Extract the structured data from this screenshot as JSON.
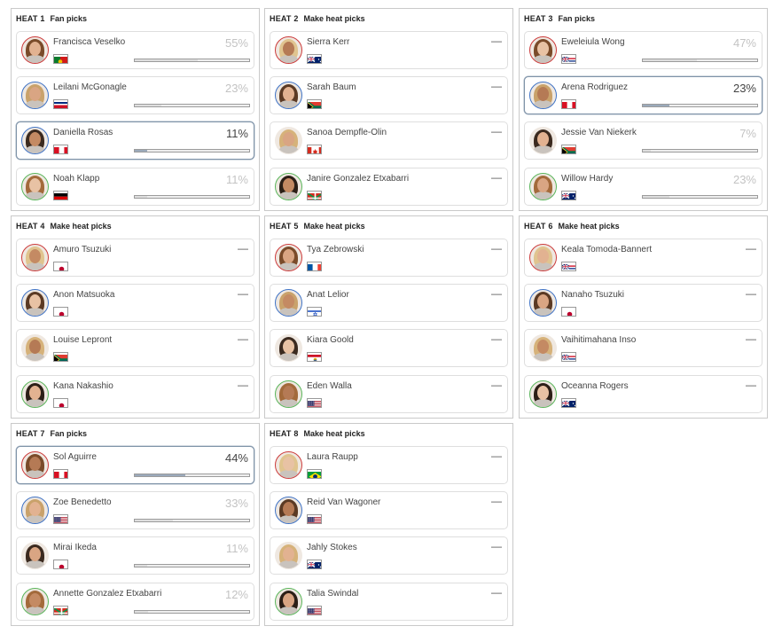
{
  "heats": [
    {
      "number": "HEAT 1",
      "subtitle": "Fan picks",
      "surfers": [
        {
          "name": "Francisca Veselko",
          "flag": "portugal-flag",
          "ring": "red",
          "percent": "55%",
          "value": 55,
          "selected": false
        },
        {
          "name": "Leilani McGonagle",
          "flag": "costa-rica-flag",
          "ring": "blue",
          "percent": "23%",
          "value": 23,
          "selected": false
        },
        {
          "name": "Daniella Rosas",
          "flag": "peru-flag",
          "ring": "blue",
          "percent": "11%",
          "value": 11,
          "selected": true
        },
        {
          "name": "Noah Klapp",
          "flag": "germany-flag",
          "ring": "green",
          "percent": "11%",
          "value": 11,
          "selected": false
        }
      ]
    },
    {
      "number": "HEAT 2",
      "subtitle": "Make heat picks",
      "surfers": [
        {
          "name": "Sierra Kerr",
          "flag": "australia-flag",
          "ring": "red",
          "percent": "—",
          "value": null,
          "selected": false
        },
        {
          "name": "Sarah Baum",
          "flag": "south-africa-flag",
          "ring": "blue",
          "percent": "—",
          "value": null,
          "selected": false
        },
        {
          "name": "Sanoa Dempfle-Olin",
          "flag": "canada-flag",
          "ring": "none",
          "percent": "—",
          "value": null,
          "selected": false
        },
        {
          "name": "Janire Gonzalez Etxabarri",
          "flag": "basque-flag",
          "ring": "green",
          "percent": "—",
          "value": null,
          "selected": false
        }
      ]
    },
    {
      "number": "HEAT 3",
      "subtitle": "Fan picks",
      "surfers": [
        {
          "name": "Eweleiula Wong",
          "flag": "hawaii-flag",
          "ring": "red",
          "percent": "47%",
          "value": 47,
          "selected": false
        },
        {
          "name": "Arena Rodriguez",
          "flag": "peru-flag",
          "ring": "blue",
          "percent": "23%",
          "value": 23,
          "selected": true
        },
        {
          "name": "Jessie Van Niekerk",
          "flag": "south-africa-flag",
          "ring": "none",
          "percent": "7%",
          "value": 7,
          "selected": false
        },
        {
          "name": "Willow Hardy",
          "flag": "australia-flag",
          "ring": "green",
          "percent": "23%",
          "value": 23,
          "selected": false
        }
      ]
    },
    {
      "number": "HEAT 4",
      "subtitle": "Make heat picks",
      "surfers": [
        {
          "name": "Amuro Tsuzuki",
          "flag": "japan-flag",
          "ring": "red",
          "percent": "—",
          "value": null,
          "selected": false
        },
        {
          "name": "Anon Matsuoka",
          "flag": "japan-flag",
          "ring": "blue",
          "percent": "—",
          "value": null,
          "selected": false
        },
        {
          "name": "Louise Lepront",
          "flag": "south-africa-flag",
          "ring": "none",
          "percent": "—",
          "value": null,
          "selected": false
        },
        {
          "name": "Kana Nakashio",
          "flag": "japan-flag",
          "ring": "green",
          "percent": "—",
          "value": null,
          "selected": false
        }
      ]
    },
    {
      "number": "HEAT 5",
      "subtitle": "Make heat picks",
      "surfers": [
        {
          "name": "Tya Zebrowski",
          "flag": "france-flag",
          "ring": "red",
          "percent": "—",
          "value": null,
          "selected": false
        },
        {
          "name": "Anat Lelior",
          "flag": "israel-flag",
          "ring": "blue",
          "percent": "—",
          "value": null,
          "selected": false
        },
        {
          "name": "Kiara Goold",
          "flag": "tahiti-flag",
          "ring": "none",
          "percent": "—",
          "value": null,
          "selected": false
        },
        {
          "name": "Eden Walla",
          "flag": "usa-flag",
          "ring": "green",
          "percent": "—",
          "value": null,
          "selected": false
        }
      ]
    },
    {
      "number": "HEAT 6",
      "subtitle": "Make heat picks",
      "surfers": [
        {
          "name": "Keala Tomoda-Bannert",
          "flag": "hawaii-flag",
          "ring": "red",
          "percent": "—",
          "value": null,
          "selected": false
        },
        {
          "name": "Nanaho Tsuzuki",
          "flag": "japan-flag",
          "ring": "blue",
          "percent": "—",
          "value": null,
          "selected": false
        },
        {
          "name": "Vaihitimahana Inso",
          "flag": "hawaii-flag",
          "ring": "none",
          "percent": "—",
          "value": null,
          "selected": false
        },
        {
          "name": "Oceanna Rogers",
          "flag": "australia-flag",
          "ring": "green",
          "percent": "—",
          "value": null,
          "selected": false
        }
      ]
    },
    {
      "number": "HEAT 7",
      "subtitle": "Fan picks",
      "surfers": [
        {
          "name": "Sol Aguirre",
          "flag": "peru-flag",
          "ring": "red",
          "percent": "44%",
          "value": 44,
          "selected": true
        },
        {
          "name": "Zoe Benedetto",
          "flag": "usa-flag",
          "ring": "blue",
          "percent": "33%",
          "value": 33,
          "selected": false
        },
        {
          "name": "Mirai Ikeda",
          "flag": "japan-flag",
          "ring": "none",
          "percent": "11%",
          "value": 11,
          "selected": false
        },
        {
          "name": "Annette Gonzalez Etxabarri",
          "flag": "basque-flag",
          "ring": "green",
          "percent": "12%",
          "value": 12,
          "selected": false
        }
      ]
    },
    {
      "number": "HEAT 8",
      "subtitle": "Make heat picks",
      "surfers": [
        {
          "name": "Laura Raupp",
          "flag": "brazil-flag",
          "ring": "red",
          "percent": "—",
          "value": null,
          "selected": false
        },
        {
          "name": "Reid Van Wagoner",
          "flag": "usa-flag",
          "ring": "blue",
          "percent": "—",
          "value": null,
          "selected": false
        },
        {
          "name": "Jahly Stokes",
          "flag": "australia-flag",
          "ring": "none",
          "percent": "—",
          "value": null,
          "selected": false
        },
        {
          "name": "Talia Swindal",
          "flag": "usa-flag",
          "ring": "green",
          "percent": "—",
          "value": null,
          "selected": false
        }
      ]
    }
  ]
}
